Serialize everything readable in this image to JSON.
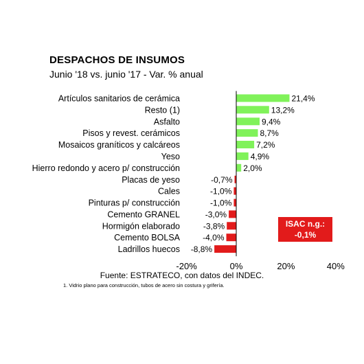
{
  "header": {
    "title": "DESPACHOS DE INSUMOS",
    "subtitle": "Junio '18 vs. junio '17 - Var. % anual"
  },
  "chart_data": {
    "type": "bar",
    "orientation": "horizontal",
    "categories": [
      "Artículos sanitarios de cerámica",
      "Resto (1)",
      "Asfalto",
      "Pisos y revest. cerámicos",
      "Mosaicos graníticos y calcáreos",
      "Yeso",
      "Hierro redondo y acero p/ construcción",
      "Placas de yeso",
      "Cales",
      "Pinturas p/ construcción",
      "Cemento GRANEL",
      "Hormigón elaborado",
      "Cemento BOLSA",
      "Ladrillos huecos"
    ],
    "values": [
      21.4,
      13.2,
      9.4,
      8.7,
      7.2,
      4.9,
      2.0,
      -0.7,
      -1.0,
      -1.0,
      -3.0,
      -3.8,
      -4.0,
      -8.8
    ],
    "value_labels": [
      "21,4%",
      "13,2%",
      "9,4%",
      "8,7%",
      "7,2%",
      "4,9%",
      "2,0%",
      "-0,7%",
      "-1,0%",
      "-1,0%",
      "-3,0%",
      "-3,8%",
      "-4,0%",
      "-8,8%"
    ],
    "xlim": [
      -20,
      40
    ],
    "x_ticks": [
      -20,
      0,
      20,
      40
    ],
    "x_tick_labels": [
      "-20%",
      "0%",
      "20%",
      "40%"
    ],
    "colors": {
      "positive": "#80f25a",
      "negative": "#e21b1b"
    },
    "grid": false,
    "title": "DESPACHOS DE INSUMOS",
    "xlabel": "",
    "ylabel": ""
  },
  "isac": {
    "line1": "ISAC n.g.:",
    "line2": "-0,1%",
    "color": "#e21b1b"
  },
  "source": "Fuente: ESTRATECO, con datos del INDEC.",
  "footnote": "1. Vidrio plano para construcción, tubos de acero sin costura y grifería."
}
